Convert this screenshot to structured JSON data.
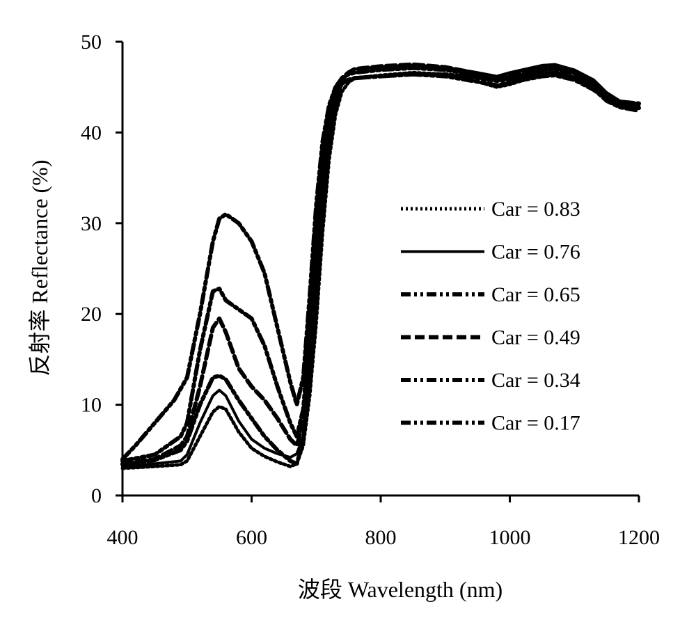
{
  "chart_data": {
    "type": "line",
    "title": "",
    "xlabel": "波段 Wavelength (nm)",
    "ylabel": "反射率 Reflectance (%)",
    "xlim": [
      400,
      1200
    ],
    "ylim": [
      0,
      50
    ],
    "xticks": [
      400,
      600,
      800,
      1000,
      1200
    ],
    "yticks": [
      0,
      10,
      20,
      30,
      40,
      50
    ],
    "grid": false,
    "legend_position": "right-center",
    "line_color": "#000000",
    "series": [
      {
        "name": "Car = 0.83",
        "dash": "dotted",
        "x": [
          400,
          450,
          490,
          500,
          520,
          540,
          550,
          560,
          580,
          600,
          620,
          640,
          660,
          670,
          680,
          690,
          700,
          710,
          720,
          730,
          740,
          750,
          760,
          800,
          850,
          900,
          950,
          980,
          1000,
          1050,
          1070,
          1100,
          1130,
          1150,
          1170,
          1200
        ],
        "y": [
          3,
          3.2,
          3.4,
          3.8,
          6.5,
          9.2,
          9.8,
          9.5,
          7.0,
          5.2,
          4.3,
          3.7,
          3.2,
          3.5,
          5.5,
          11,
          19,
          29,
          37,
          42,
          44.5,
          45.5,
          46.0,
          46.3,
          46.6,
          46.4,
          45.6,
          45.0,
          45.3,
          46.4,
          46.6,
          46.1,
          45.2,
          44.0,
          43.2,
          43.0
        ]
      },
      {
        "name": "Car = 0.76",
        "dash": "solid",
        "x": [
          400,
          450,
          490,
          500,
          520,
          540,
          550,
          560,
          580,
          600,
          620,
          640,
          660,
          670,
          680,
          690,
          700,
          710,
          720,
          730,
          740,
          750,
          760,
          800,
          850,
          900,
          950,
          980,
          1000,
          1050,
          1070,
          1100,
          1130,
          1150,
          1170,
          1200
        ],
        "y": [
          3.2,
          3.5,
          3.8,
          4.5,
          8.0,
          11.0,
          11.6,
          11.0,
          8.2,
          6.2,
          5.2,
          4.6,
          4.2,
          4.6,
          6.5,
          12,
          20,
          30,
          38,
          43,
          45.5,
          46.6,
          47.0,
          47.2,
          47.4,
          47.2,
          46.6,
          46.2,
          46.6,
          47.4,
          47.5,
          46.9,
          45.8,
          44.4,
          43.5,
          43.2
        ]
      },
      {
        "name": "Car = 0.65",
        "dash": "dash-dot-dot",
        "x": [
          400,
          420,
          450,
          480,
          500,
          520,
          540,
          550,
          560,
          580,
          600,
          620,
          640,
          660,
          670,
          680,
          690,
          700,
          710,
          720,
          730,
          740,
          750,
          760,
          800,
          850,
          900,
          950,
          980,
          1000,
          1050,
          1070,
          1100,
          1130,
          1150,
          1170,
          1200
        ],
        "y": [
          4,
          5.5,
          8.0,
          10.5,
          13.0,
          20.0,
          28.0,
          30.5,
          31.0,
          30.0,
          28.0,
          24.5,
          18.5,
          12.5,
          10.0,
          13.0,
          22,
          32,
          39,
          43,
          45,
          45.6,
          45.8,
          46.0,
          46.2,
          46.4,
          46.4,
          46.0,
          45.7,
          45.9,
          46.5,
          46.6,
          46.0,
          44.8,
          43.5,
          42.8,
          42.4
        ]
      },
      {
        "name": "Car = 0.49",
        "dash": "dashed",
        "x": [
          400,
          450,
          490,
          500,
          520,
          540,
          550,
          560,
          580,
          600,
          620,
          640,
          660,
          670,
          680,
          690,
          700,
          710,
          720,
          730,
          740,
          750,
          760,
          800,
          850,
          900,
          950,
          980,
          1000,
          1050,
          1070,
          1100,
          1130,
          1150,
          1170,
          1200
        ],
        "y": [
          3.5,
          4.0,
          5.5,
          6.5,
          12.0,
          18.5,
          19.5,
          18.0,
          14.0,
          12.0,
          10.5,
          8.5,
          6.2,
          5.5,
          8.0,
          16,
          26,
          35,
          41,
          44.5,
          46,
          46.6,
          47.0,
          47.3,
          47.5,
          47.2,
          46.5,
          46.0,
          46.4,
          47.2,
          47.3,
          46.8,
          45.5,
          44.2,
          43.4,
          43.2
        ]
      },
      {
        "name": "Car = 0.34",
        "dash": "dash-dot-dot",
        "x": [
          400,
          450,
          490,
          500,
          520,
          540,
          550,
          560,
          580,
          600,
          620,
          640,
          660,
          670,
          680,
          690,
          700,
          710,
          720,
          730,
          740,
          750,
          760,
          800,
          850,
          900,
          950,
          980,
          1000,
          1050,
          1070,
          1100,
          1130,
          1150,
          1170,
          1200
        ],
        "y": [
          3.8,
          4.5,
          6.5,
          8.0,
          16.0,
          22.5,
          22.8,
          21.5,
          20.5,
          19.5,
          16.5,
          12.0,
          8.0,
          6.5,
          9.5,
          18,
          28,
          37,
          42.5,
          45,
          46,
          46.4,
          46.6,
          46.9,
          47.1,
          46.9,
          46.3,
          45.8,
          46.1,
          46.9,
          47.0,
          46.5,
          45.3,
          44.0,
          43.2,
          43.0
        ]
      },
      {
        "name": "Car = 0.17",
        "dash": "dash-dot-dot",
        "x": [
          400,
          450,
          490,
          500,
          520,
          540,
          550,
          560,
          580,
          600,
          620,
          640,
          660,
          670,
          680,
          690,
          700,
          710,
          720,
          730,
          740,
          750,
          760,
          800,
          850,
          900,
          950,
          980,
          1000,
          1050,
          1070,
          1100,
          1130,
          1150,
          1170,
          1200
        ],
        "y": [
          3.4,
          3.9,
          5.0,
          6.0,
          10.0,
          13.0,
          13.2,
          12.8,
          10.5,
          8.5,
          6.5,
          5.0,
          3.8,
          3.5,
          6.0,
          14,
          24,
          33,
          40,
          44,
          45.4,
          45.8,
          46.0,
          46.2,
          46.4,
          46.2,
          45.6,
          45.2,
          45.5,
          46.2,
          46.3,
          45.8,
          44.7,
          43.6,
          42.9,
          42.7
        ]
      }
    ]
  }
}
